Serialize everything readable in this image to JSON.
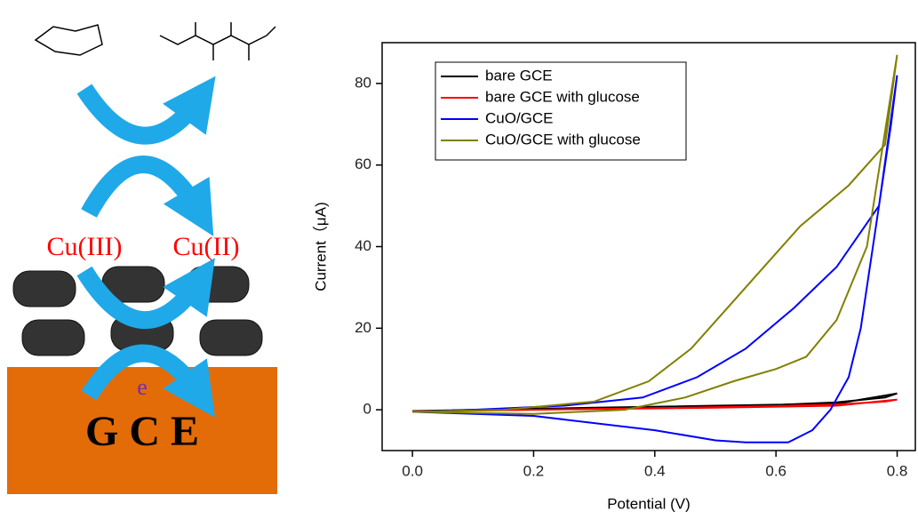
{
  "schematic": {
    "oxidized": "Cu(III)",
    "reduced": "Cu(II)",
    "electron": "e",
    "electrode": "G C E"
  },
  "chart_data": {
    "type": "line",
    "xlabel": "Potential (V)",
    "ylabel": "Current（μA)",
    "xlim": [
      -0.05,
      0.83
    ],
    "ylim": [
      -10,
      90
    ],
    "xticks": [
      {
        "value": 0,
        "label": "0.0"
      },
      {
        "value": 0.2,
        "label": "0.2"
      },
      {
        "value": 0.4,
        "label": "0.4"
      },
      {
        "value": 0.6,
        "label": "0.6"
      },
      {
        "value": 0.8,
        "label": "0.8"
      }
    ],
    "yticks": [
      0,
      20,
      40,
      60,
      80
    ],
    "grid": false,
    "legend": "upper left",
    "series": [
      {
        "name": "bare GCE",
        "color": "#000000",
        "x": [
          0,
          0.2,
          0.4,
          0.6,
          0.7,
          0.78,
          0.8,
          0.7,
          0.5,
          0.3,
          0.1,
          0
        ],
        "values": [
          -0.3,
          0.2,
          0.6,
          1.2,
          1.8,
          3,
          4,
          1.5,
          1,
          0.5,
          0,
          -0.3
        ]
      },
      {
        "name": "bare GCE with glucose",
        "color": "#ff0000",
        "x": [
          0,
          0.2,
          0.4,
          0.6,
          0.7,
          0.78,
          0.8,
          0.7,
          0.5,
          0.3,
          0.1,
          0
        ],
        "values": [
          -0.4,
          0,
          0.4,
          0.9,
          1.3,
          2,
          2.5,
          1,
          0.5,
          0.2,
          -0.2,
          -0.4
        ]
      },
      {
        "name": "CuO/GCE",
        "color": "#0000ff",
        "x": [
          0,
          0.2,
          0.4,
          0.5,
          0.55,
          0.62,
          0.66,
          0.69,
          0.72,
          0.74,
          0.77,
          0.8,
          0.79,
          0.77,
          0.7,
          0.63,
          0.55,
          0.47,
          0.38,
          0.25,
          0.1,
          0
        ],
        "values": [
          -0.5,
          -1.5,
          -5,
          -7.5,
          -8,
          -8,
          -5,
          0,
          8,
          20,
          50,
          82,
          70,
          50,
          35,
          25,
          15,
          8,
          3,
          1,
          0,
          -0.5
        ]
      },
      {
        "name": "CuO/GCE with glucose",
        "color": "#808000",
        "x": [
          0,
          0.2,
          0.35,
          0.45,
          0.53,
          0.6,
          0.65,
          0.7,
          0.75,
          0.8,
          0.78,
          0.72,
          0.64,
          0.58,
          0.52,
          0.46,
          0.39,
          0.3,
          0.15,
          0
        ],
        "values": [
          -0.5,
          -1,
          0,
          3,
          7,
          10,
          13,
          22,
          40,
          87,
          65,
          55,
          45,
          35,
          25,
          15,
          7,
          2,
          0,
          -0.5
        ]
      }
    ]
  }
}
